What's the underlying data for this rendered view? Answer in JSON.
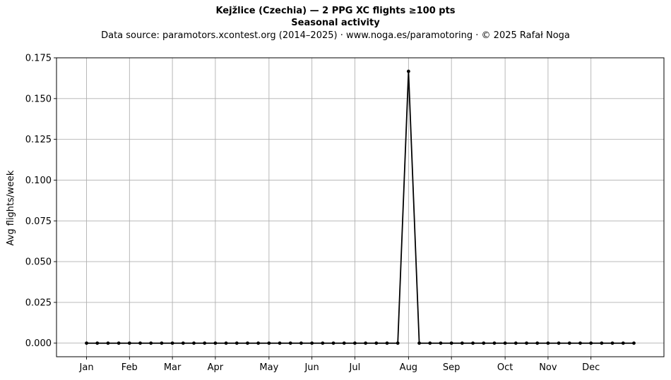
{
  "header": {
    "title": "Kejžlice (Czechia)  —  2 PPG XC flights ≥100 pts",
    "subtitle": "Seasonal activity",
    "source": "Data source: paramotors.xcontest.org (2014–2025)  ·  www.noga.es/paramotoring  ·  © 2025 Rafał Noga"
  },
  "chart_data": {
    "type": "line",
    "title": "Kejžlice (Czechia)  —  2 PPG XC flights ≥100 pts",
    "subtitle": "Seasonal activity",
    "xlabel": "",
    "ylabel": "Avg flights/week",
    "x_unit": "week of year",
    "xlim": [
      -1.8,
      54.8
    ],
    "ylim": [
      -0.00833,
      0.175
    ],
    "yticks": [
      0.0,
      0.025,
      0.05,
      0.075,
      0.1,
      0.125,
      0.15,
      0.175
    ],
    "ytick_labels": [
      "0.000",
      "0.025",
      "0.050",
      "0.075",
      "0.100",
      "0.125",
      "0.150",
      "0.175"
    ],
    "xticks": [
      1,
      5,
      9,
      13,
      18,
      22,
      26,
      31,
      35,
      40,
      44,
      48
    ],
    "xtick_labels": [
      "Jan",
      "Feb",
      "Mar",
      "Apr",
      "May",
      "Jun",
      "Jul",
      "Aug",
      "Sep",
      "Oct",
      "Nov",
      "Dec"
    ],
    "grid": true,
    "legend": "none",
    "line_color": "#000000",
    "x": [
      1,
      2,
      3,
      4,
      5,
      6,
      7,
      8,
      9,
      10,
      11,
      12,
      13,
      14,
      15,
      16,
      17,
      18,
      19,
      20,
      21,
      22,
      23,
      24,
      25,
      26,
      27,
      28,
      29,
      30,
      31,
      32,
      33,
      34,
      35,
      36,
      37,
      38,
      39,
      40,
      41,
      42,
      43,
      44,
      45,
      46,
      47,
      48,
      49,
      50,
      51,
      52
    ],
    "y": [
      0,
      0,
      0,
      0,
      0,
      0,
      0,
      0,
      0,
      0,
      0,
      0,
      0,
      0,
      0,
      0,
      0,
      0,
      0,
      0,
      0,
      0,
      0,
      0,
      0,
      0,
      0,
      0,
      0,
      0,
      0.1667,
      0,
      0,
      0,
      0,
      0,
      0,
      0,
      0,
      0,
      0,
      0,
      0,
      0,
      0,
      0,
      0,
      0,
      0,
      0,
      0,
      0
    ]
  }
}
